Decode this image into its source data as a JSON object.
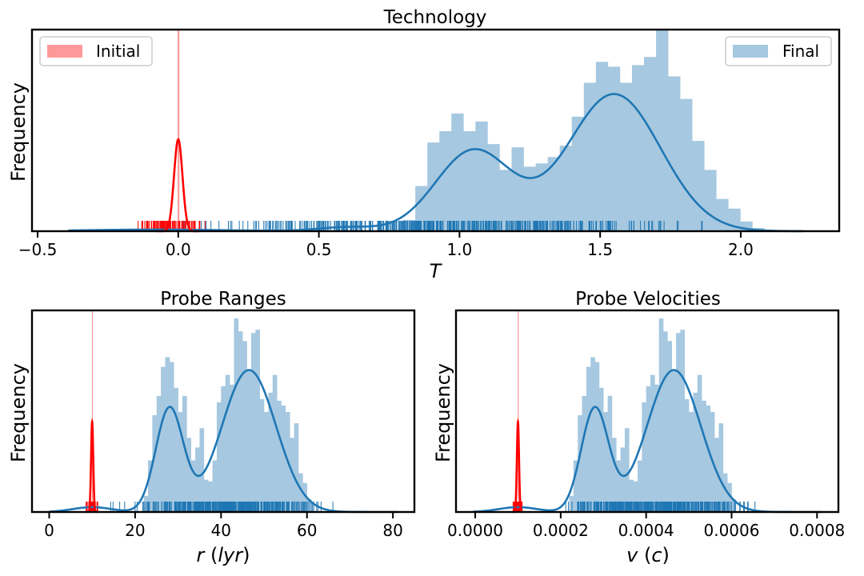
{
  "chart_data": [
    {
      "id": "tech",
      "type": "histogram",
      "title": "Technology",
      "xlabel_var": "T",
      "xlabel_unit": "",
      "ylabel": "Frequency",
      "xlim": [
        -0.52,
        2.35
      ],
      "ylim": [
        0,
        12.5
      ],
      "xticks": [
        -0.5,
        0.0,
        0.5,
        1.0,
        1.5,
        2.0
      ],
      "xtick_labels": [
        "−0.5",
        "0.0",
        "0.5",
        "1.0",
        "1.5",
        "2.0"
      ],
      "legend": [
        {
          "label": "Initial",
          "color": "#ff9999",
          "position": "top-left"
        },
        {
          "label": "Final",
          "color": "#a6c8e0",
          "position": "top-right"
        }
      ],
      "initial": {
        "bars": [
          {
            "x0": -0.002,
            "x1": 0.004,
            "value": 12.5
          }
        ],
        "kde": {
          "mean": 0.0,
          "sd": 0.015,
          "peak": 5.7
        },
        "rug": {
          "min": -0.22,
          "max": 0.16,
          "count": 90,
          "color": "#ff0000"
        }
      },
      "final": {
        "bin_start": 0.8,
        "bin_width": 0.0428,
        "values": [
          0.7,
          2.8,
          5.5,
          6.2,
          7.3,
          6.2,
          6.8,
          5.4,
          3.8,
          5.2,
          4.0,
          4.2,
          4.6,
          5.3,
          7.1,
          9.2,
          10.5,
          10.2,
          9.2,
          10.3,
          10.8,
          12.5,
          9.6,
          8.2,
          5.6,
          3.8,
          2.0,
          1.4,
          0.6,
          0.2
        ],
        "kde_components": [
          {
            "mean": 1.05,
            "sd": 0.135,
            "peak": 5.0
          },
          {
            "mean": 1.55,
            "sd": 0.165,
            "peak": 8.5
          },
          {
            "mean": -0.08,
            "sd": 0.25,
            "peak": 0.1
          },
          {
            "mean": 0.6,
            "sd": 0.1,
            "peak": 0.25
          }
        ],
        "rug": {
          "min": -0.35,
          "max": 2.2,
          "count": 500,
          "color": "#1f77b4"
        }
      }
    },
    {
      "id": "range",
      "type": "histogram",
      "title": "Probe Ranges",
      "xlabel_var": "r",
      "xlabel_unit": "lyr",
      "ylabel": "Frequency",
      "xlim": [
        -4,
        85
      ],
      "ylim": [
        0,
        12.5
      ],
      "xticks": [
        0,
        20,
        40,
        60,
        80
      ],
      "xtick_labels": [
        "0",
        "20",
        "40",
        "60",
        "80"
      ],
      "initial": {
        "bars": [
          {
            "x0": 9.95,
            "x1": 10.05,
            "value": 12.5
          }
        ],
        "kde": {
          "mean": 10.0,
          "sd": 0.25,
          "peak": 5.6
        },
        "rug": {
          "min": 8.0,
          "max": 12.0,
          "count": 40,
          "color": "#ff0000"
        }
      },
      "final": {
        "bin_start": 22,
        "bin_width": 1.0,
        "values": [
          1.0,
          3.2,
          6.0,
          7.2,
          9.0,
          9.6,
          9.3,
          7.7,
          6.2,
          7.2,
          4.6,
          3.2,
          4.0,
          5.2,
          2.0,
          1.9,
          3.2,
          6.8,
          7.8,
          8.5,
          7.9,
          12.0,
          11.2,
          10.6,
          8.8,
          11.1,
          11.3,
          7.0,
          6.2,
          7.4,
          8.5,
          6.9,
          6.6,
          6.2,
          4.6,
          5.5,
          2.4,
          1.8,
          0.8,
          0.0
        ],
        "kde_components": [
          {
            "mean": 28.0,
            "sd": 3.2,
            "peak": 6.4
          },
          {
            "mean": 46.5,
            "sd": 6.3,
            "peak": 8.8
          },
          {
            "mean": 10.0,
            "sd": 4.5,
            "peak": 0.3
          }
        ],
        "rug": {
          "min": 9.0,
          "max": 74.0,
          "count": 420,
          "color": "#1f77b4"
        }
      }
    },
    {
      "id": "velocity",
      "type": "histogram",
      "title": "Probe Velocities",
      "xlabel_var": "v",
      "xlabel_unit": "c",
      "ylabel": "Frequency",
      "xlim": [
        -4.5e-05,
        0.00085
      ],
      "ylim": [
        0,
        12.5
      ],
      "xticks": [
        0.0,
        0.0002,
        0.0004,
        0.0006,
        0.0008
      ],
      "xtick_labels": [
        "0.0000",
        "0.0002",
        "0.0004",
        "0.0006",
        "0.0008"
      ],
      "initial": {
        "bars": [
          {
            "x0": 9.95e-05,
            "x1": 0.0001005,
            "value": 12.5
          }
        ],
        "kde": {
          "mean": 0.0001,
          "sd": 2.5e-06,
          "peak": 5.6
        },
        "rug": {
          "min": 8e-05,
          "max": 0.00012,
          "count": 40,
          "color": "#ff0000"
        }
      },
      "final": {
        "bin_start": 0.00022,
        "bin_width": 1e-05,
        "values": [
          1.0,
          3.2,
          6.0,
          7.2,
          9.0,
          9.6,
          9.3,
          7.7,
          6.2,
          7.2,
          4.6,
          3.2,
          4.0,
          5.2,
          2.0,
          1.9,
          3.2,
          6.8,
          7.8,
          8.5,
          7.9,
          12.0,
          11.2,
          10.6,
          8.8,
          11.1,
          11.3,
          7.0,
          6.2,
          7.4,
          8.5,
          6.9,
          6.6,
          6.2,
          4.6,
          5.5,
          2.4,
          1.8,
          0.8,
          0.0
        ],
        "kde_components": [
          {
            "mean": 0.00028,
            "sd": 3.2e-05,
            "peak": 6.4
          },
          {
            "mean": 0.000465,
            "sd": 6.3e-05,
            "peak": 8.8
          },
          {
            "mean": 0.0001,
            "sd": 4.5e-05,
            "peak": 0.3
          }
        ],
        "rug": {
          "min": 9e-05,
          "max": 0.00074,
          "count": 420,
          "color": "#1f77b4"
        }
      }
    }
  ],
  "colors": {
    "final_bar": "#a6c8e0",
    "final_line": "#1f77b4",
    "initial_bar": "#ff9999",
    "initial_line": "#ff0000"
  }
}
